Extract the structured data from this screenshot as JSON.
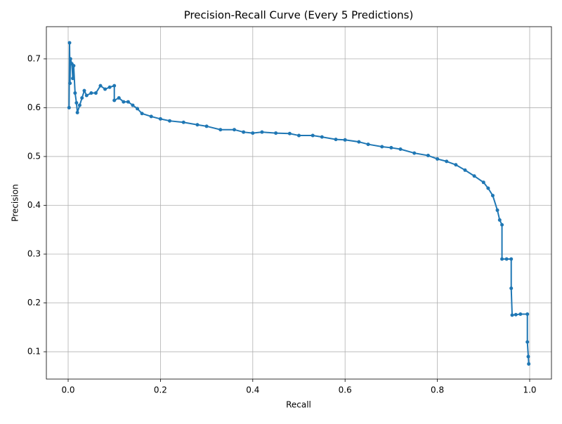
{
  "chart_data": {
    "type": "line",
    "title": "Precision-Recall Curve (Every 5 Predictions)",
    "x_label": "Recall",
    "y_label": "Precision",
    "x": [
      0.002,
      0.003,
      0.004,
      0.005,
      0.008,
      0.01,
      0.012,
      0.015,
      0.018,
      0.02,
      0.025,
      0.03,
      0.035,
      0.04,
      0.05,
      0.06,
      0.07,
      0.08,
      0.09,
      0.1,
      0.1,
      0.11,
      0.12,
      0.13,
      0.14,
      0.15,
      0.16,
      0.18,
      0.2,
      0.22,
      0.25,
      0.28,
      0.3,
      0.33,
      0.36,
      0.38,
      0.4,
      0.42,
      0.45,
      0.48,
      0.5,
      0.53,
      0.55,
      0.58,
      0.6,
      0.63,
      0.65,
      0.68,
      0.7,
      0.72,
      0.75,
      0.78,
      0.8,
      0.82,
      0.84,
      0.86,
      0.88,
      0.9,
      0.91,
      0.92,
      0.93,
      0.935,
      0.94,
      0.94,
      0.95,
      0.96,
      0.96,
      0.962,
      0.97,
      0.98,
      0.995,
      0.995,
      0.997,
      0.998
    ],
    "series": [
      {
        "name": "Precision",
        "color": "#1f77b4",
        "values": [
          0.6,
          0.733,
          0.65,
          0.7,
          0.69,
          0.66,
          0.686,
          0.63,
          0.61,
          0.59,
          0.605,
          0.62,
          0.635,
          0.625,
          0.63,
          0.63,
          0.645,
          0.638,
          0.642,
          0.645,
          0.615,
          0.62,
          0.612,
          0.612,
          0.605,
          0.598,
          0.588,
          0.582,
          0.577,
          0.573,
          0.57,
          0.565,
          0.562,
          0.555,
          0.555,
          0.55,
          0.548,
          0.55,
          0.548,
          0.547,
          0.543,
          0.543,
          0.54,
          0.535,
          0.534,
          0.53,
          0.525,
          0.52,
          0.518,
          0.515,
          0.507,
          0.502,
          0.495,
          0.49,
          0.483,
          0.472,
          0.46,
          0.447,
          0.435,
          0.42,
          0.39,
          0.37,
          0.36,
          0.29,
          0.29,
          0.29,
          0.23,
          0.175,
          0.176,
          0.177,
          0.177,
          0.12,
          0.09,
          0.075
        ]
      }
    ],
    "xlim": [
      -0.0472,
      1.0472
    ],
    "ylim": [
      0.044,
      0.766
    ],
    "xticks": [
      {
        "value": 0,
        "label": "0.0"
      },
      0.2,
      0.4,
      0.6,
      0.8,
      {
        "value": 1,
        "label": "1.0"
      }
    ],
    "yticks": [
      0.1,
      0.2,
      0.3,
      0.4,
      0.5,
      0.6,
      0.7
    ],
    "grid": true
  }
}
